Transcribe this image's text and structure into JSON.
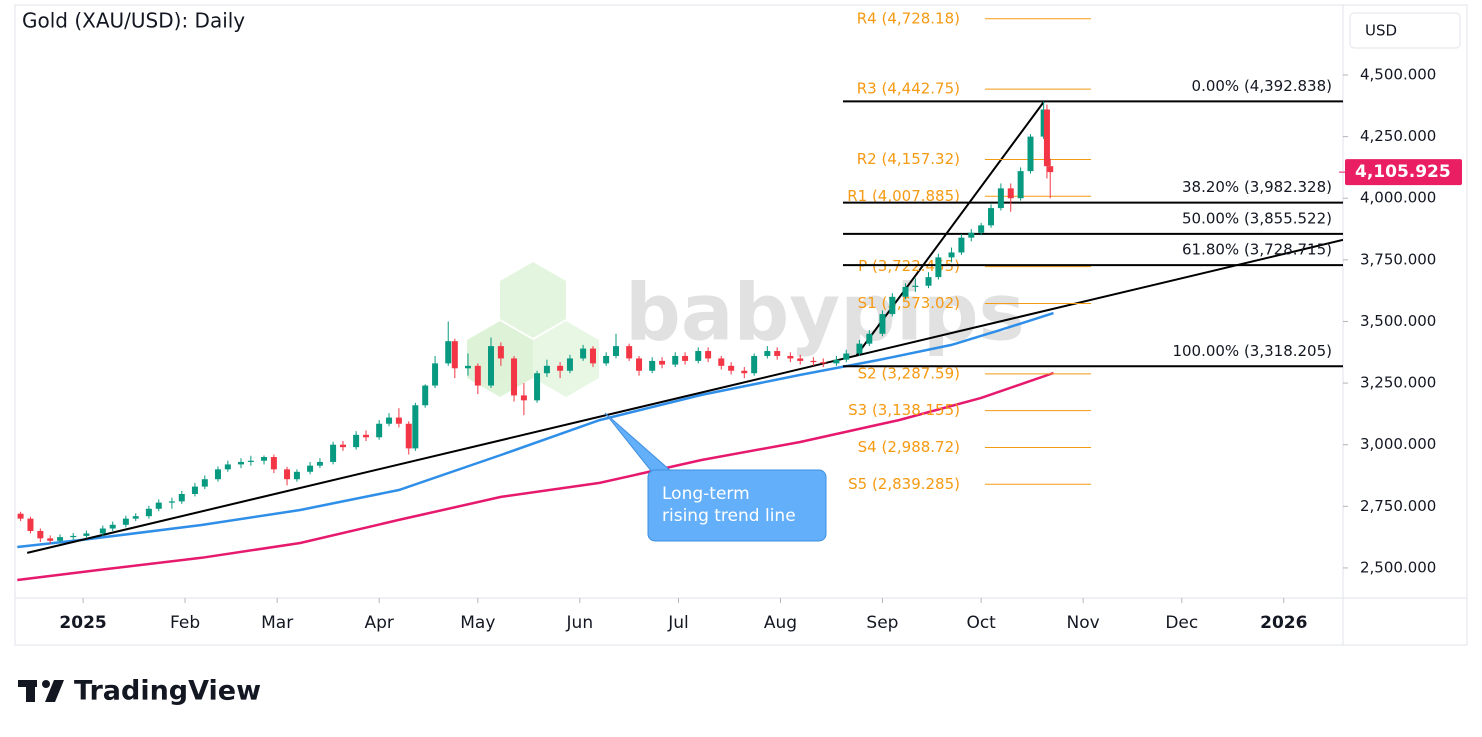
{
  "chart_data": {
    "type": "candlestick",
    "title": "Gold (XAU/USD): Daily",
    "currency": "USD",
    "up_color": "#089981",
    "down_color": "#f23645",
    "x": [
      -19,
      -16,
      -13,
      -10,
      -7,
      -3,
      1,
      6,
      9,
      13,
      16,
      20,
      23,
      27,
      30,
      34,
      37,
      41,
      44,
      48,
      51,
      55,
      58,
      62,
      65,
      69,
      72,
      76,
      79,
      83,
      86,
      90,
      93,
      96,
      99,
      101,
      104,
      107,
      111,
      113,
      117,
      120,
      124,
      127,
      131,
      134,
      138,
      141,
      145,
      148,
      152,
      155,
      159,
      162,
      166,
      169,
      173,
      176,
      180,
      183,
      187,
      190,
      194,
      197,
      201,
      204,
      208,
      211,
      215,
      218,
      222,
      225,
      229,
      232,
      236,
      239,
      243,
      246,
      250,
      253,
      257,
      260,
      264,
      267,
      270,
      273,
      276,
      279,
      282,
      285,
      288,
      292,
      293,
      294
    ],
    "open": [
      2720,
      2700,
      2650,
      2620,
      2610,
      2625,
      2630,
      2640,
      2660,
      2675,
      2700,
      2710,
      2740,
      2765,
      2770,
      2800,
      2830,
      2860,
      2900,
      2920,
      2930,
      2935,
      2950,
      2900,
      2860,
      2890,
      2915,
      2930,
      3000,
      2990,
      3040,
      3030,
      3085,
      3110,
      3085,
      2985,
      3160,
      3240,
      3330,
      3420,
      3310,
      3320,
      3240,
      3400,
      3350,
      3200,
      3180,
      3290,
      3320,
      3300,
      3350,
      3390,
      3330,
      3360,
      3400,
      3350,
      3300,
      3340,
      3325,
      3360,
      3340,
      3380,
      3350,
      3320,
      3300,
      3290,
      3360,
      3380,
      3360,
      3350,
      3340,
      3335,
      3330,
      3345,
      3370,
      3410,
      3450,
      3530,
      3600,
      3640,
      3645,
      3680,
      3760,
      3780,
      3840,
      3860,
      3890,
      3960,
      4040,
      4000,
      4110,
      4250,
      4360,
      4130
    ],
    "high": [
      2728,
      2708,
      2660,
      2632,
      2636,
      2642,
      2652,
      2672,
      2688,
      2712,
      2722,
      2752,
      2778,
      2785,
      2812,
      2845,
      2875,
      2912,
      2935,
      2945,
      2955,
      2956,
      2960,
      2910,
      2900,
      2930,
      2945,
      3012,
      3015,
      3055,
      3058,
      3100,
      3128,
      3148,
      3095,
      3170,
      3245,
      3360,
      3500,
      3430,
      3370,
      3330,
      3435,
      3415,
      3360,
      3250,
      3300,
      3345,
      3335,
      3365,
      3405,
      3400,
      3375,
      3450,
      3410,
      3360,
      3355,
      3355,
      3375,
      3375,
      3395,
      3395,
      3360,
      3335,
      3315,
      3370,
      3400,
      3395,
      3375,
      3365,
      3355,
      3350,
      3360,
      3385,
      3425,
      3465,
      3545,
      3615,
      3655,
      3675,
      3700,
      3775,
      3800,
      3855,
      3875,
      3900,
      3975,
      4060,
      4060,
      4125,
      4260,
      4392.838,
      4380,
      4160
    ],
    "low": [
      2690,
      2640,
      2605,
      2598,
      2600,
      2615,
      2620,
      2630,
      2650,
      2665,
      2690,
      2700,
      2730,
      2740,
      2760,
      2790,
      2820,
      2850,
      2890,
      2905,
      2915,
      2920,
      2885,
      2835,
      2850,
      2880,
      2905,
      2920,
      2975,
      2980,
      3015,
      3020,
      3075,
      3070,
      2960,
      2975,
      3150,
      3230,
      3320,
      3270,
      3280,
      3205,
      3230,
      3320,
      3175,
      3120,
      3170,
      3275,
      3270,
      3290,
      3340,
      3315,
      3320,
      3350,
      3340,
      3280,
      3290,
      3310,
      3315,
      3325,
      3330,
      3335,
      3305,
      3285,
      3270,
      3280,
      3350,
      3345,
      3335,
      3325,
      3320,
      3315,
      3320,
      3335,
      3360,
      3400,
      3440,
      3520,
      3590,
      3620,
      3635,
      3670,
      3740,
      3770,
      3825,
      3850,
      3880,
      3950,
      3945,
      3990,
      4100,
      4240,
      4080,
      4000
    ],
    "close": [
      2700,
      2650,
      2620,
      2610,
      2625,
      2630,
      2640,
      2660,
      2675,
      2700,
      2710,
      2740,
      2765,
      2770,
      2800,
      2830,
      2860,
      2900,
      2920,
      2930,
      2935,
      2950,
      2900,
      2860,
      2890,
      2915,
      2930,
      3000,
      2990,
      3040,
      3030,
      3085,
      3110,
      3085,
      2985,
      3160,
      3240,
      3330,
      3420,
      3310,
      3320,
      3240,
      3400,
      3350,
      3200,
      3180,
      3290,
      3320,
      3300,
      3350,
      3390,
      3330,
      3360,
      3400,
      3350,
      3300,
      3340,
      3325,
      3360,
      3340,
      3380,
      3350,
      3320,
      3300,
      3290,
      3360,
      3380,
      3360,
      3350,
      3340,
      3335,
      3330,
      3345,
      3370,
      3410,
      3450,
      3530,
      3600,
      3640,
      3645,
      3680,
      3760,
      3780,
      3840,
      3860,
      3890,
      3960,
      4040,
      4000,
      4110,
      4250,
      4360,
      4130,
      4105.925
    ],
    "xlim": [
      -20.7,
      383
    ],
    "ylim": [
      2378,
      4784
    ],
    "xticks": [
      {
        "value": 0,
        "label": "2025"
      },
      {
        "value": 31,
        "label": "Feb"
      },
      {
        "value": 59,
        "label": "Mar"
      },
      {
        "value": 90,
        "label": "Apr"
      },
      {
        "value": 120,
        "label": "May"
      },
      {
        "value": 151,
        "label": "Jun"
      },
      {
        "value": 181,
        "label": "Jul"
      },
      {
        "value": 212,
        "label": "Aug"
      },
      {
        "value": 243,
        "label": "Sep"
      },
      {
        "value": 273,
        "label": "Oct"
      },
      {
        "value": 304,
        "label": "Nov"
      },
      {
        "value": 334,
        "label": "Dec"
      },
      {
        "value": 365,
        "label": "2026"
      }
    ],
    "yticks": [
      {
        "value": 2500,
        "label": "2,500.000"
      },
      {
        "value": 2750,
        "label": "2,750.000"
      },
      {
        "value": 3000,
        "label": "3,000.000"
      },
      {
        "value": 3250,
        "label": "3,250.000"
      },
      {
        "value": 3500,
        "label": "3,500.000"
      },
      {
        "value": 3750,
        "label": "3,750.000"
      },
      {
        "value": 4000,
        "label": "4,000.000"
      },
      {
        "value": 4250,
        "label": "4,250.000"
      },
      {
        "value": 4500,
        "label": "4,500.000"
      }
    ],
    "moving_averages": [
      {
        "color": "#2f8fe8",
        "x": [
          -20,
          0,
          36,
          66,
          96,
          127,
          157,
          188,
          218,
          242,
          264,
          279,
          295
        ],
        "values": [
          2585,
          2614,
          2674,
          2735,
          2816,
          2958,
          3100,
          3202,
          3283,
          3344,
          3405,
          3466,
          3534
        ]
      },
      {
        "color": "#e6196e",
        "x": [
          -20,
          5,
          36,
          66,
          96,
          127,
          157,
          188,
          218,
          248,
          273,
          295
        ],
        "values": [
          2451,
          2492,
          2541,
          2601,
          2695,
          2788,
          2845,
          2938,
          3011,
          3100,
          3190,
          3291
        ]
      }
    ],
    "trendlines": [
      {
        "color": "#000000",
        "x": [
          -17,
          383
        ],
        "values": [
          2561,
          3831
        ]
      },
      {
        "color": "#000000",
        "x": [
          235,
          292
        ],
        "values": [
          3360,
          4390
        ]
      }
    ],
    "pivots": {
      "color": "#f59a13",
      "levels": [
        {
          "label": "R4 (4,728.18)",
          "value": 4728.18
        },
        {
          "label": "R3 (4,442.75)",
          "value": 4442.75
        },
        {
          "label": "R2 (4,157.32)",
          "value": 4157.32
        },
        {
          "label": "R1 (4,007.885)",
          "value": 4007.885
        },
        {
          "label": "P (3,722.455)",
          "value": 3722.455
        },
        {
          "label": "S1 (3,573.02)",
          "value": 3573.02
        },
        {
          "label": "S2 (3,287.59)",
          "value": 3287.59
        },
        {
          "label": "S3 (3,138.155)",
          "value": 3138.155
        },
        {
          "label": "S4 (2,988.72)",
          "value": 2988.72
        },
        {
          "label": "S5 (2,839.285)",
          "value": 2839.285
        }
      ]
    },
    "fibonacci": {
      "color": "#000000",
      "levels": [
        {
          "label": "0.00% (4,392.838)",
          "value": 4392.838
        },
        {
          "label": "38.20% (3,982.328)",
          "value": 3982.328
        },
        {
          "label": "50.00% (3,855.522)",
          "value": 3855.522
        },
        {
          "label": "61.80% (3,728.715)",
          "value": 3728.715
        },
        {
          "label": "100.00% (3,318.205)",
          "value": 3318.205
        }
      ]
    },
    "last_price": {
      "value": 4105.925,
      "label": "4,105.925",
      "color": "#e91e63"
    },
    "annotation": [
      "Long-term",
      "rising trend line"
    ],
    "watermark": "babypips"
  },
  "footer": {
    "brand": "TradingView"
  }
}
